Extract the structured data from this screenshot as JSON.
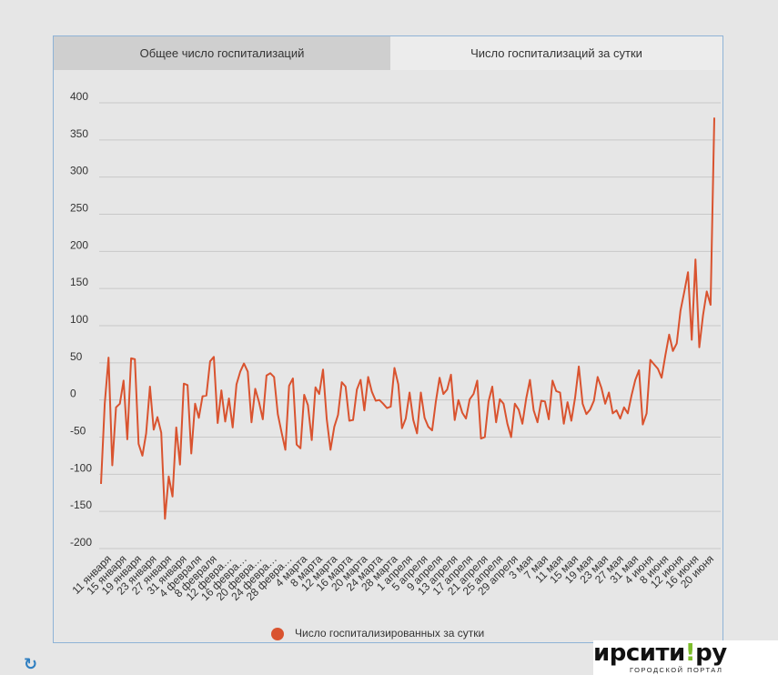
{
  "tabs": [
    {
      "label": "Общее число госпитализаций",
      "active": false
    },
    {
      "label": "Число госпитализаций за сутки",
      "active": true
    }
  ],
  "colors": {
    "series": "#d9532f",
    "grid": "#c8c8c8",
    "frame_border": "#8fb3d6"
  },
  "legend": {
    "label": "Число госпитализированных за сутки"
  },
  "icons": {
    "refresh": "refresh-icon"
  },
  "logo": {
    "main": "ирсити",
    "accent": "!",
    "suffix": "ру",
    "tagline": "ГОРОДСКОЙ ПОРТАЛ"
  },
  "chart_data": {
    "type": "line",
    "ylim": [
      -200,
      400
    ],
    "yticks": [
      400,
      350,
      300,
      250,
      200,
      150,
      100,
      50,
      0,
      -50,
      -100,
      -150,
      -200
    ],
    "grid": true,
    "legend_position": "bottom",
    "xtick_labels": [
      "11 января",
      "15 января",
      "19 января",
      "23 января",
      "27 января",
      "31 января",
      "4 февраля",
      "8 февраля",
      "12 февра…",
      "16 февра…",
      "20 февра…",
      "24 февра…",
      "28 февра…",
      "4 марта",
      "8 марта",
      "12 марта",
      "16 марта",
      "20 марта",
      "24 марта",
      "28 марта",
      "1 апреля",
      "5 апреля",
      "9 апреля",
      "13 апреля",
      "17 апреля",
      "21 апреля",
      "25 апреля",
      "29 апреля",
      "3 мая",
      "7 мая",
      "11 мая",
      "15 мая",
      "19 мая",
      "23 мая",
      "27 мая",
      "31 мая",
      "4 июня",
      "8 июня",
      "12 июня",
      "16 июня",
      "20 июня"
    ],
    "series": [
      {
        "name": "Число госпитализированных за сутки",
        "values": [
          -113,
          -5,
          57,
          -88,
          -10,
          -5,
          26,
          -53,
          56,
          55,
          -59,
          -75,
          -45,
          18,
          -40,
          -23,
          -44,
          -160,
          -103,
          -130,
          -37,
          -87,
          22,
          20,
          -72,
          -5,
          -24,
          5,
          6,
          52,
          58,
          -31,
          13,
          -29,
          2,
          -37,
          21,
          38,
          49,
          38,
          -30,
          15,
          -3,
          -26,
          33,
          36,
          31,
          -19,
          -44,
          -67,
          19,
          29,
          -60,
          -65,
          7,
          -7,
          -54,
          17,
          8,
          41,
          -26,
          -67,
          -36,
          -20,
          24,
          18,
          -28,
          -27,
          14,
          27,
          -14,
          31,
          11,
          -1,
          0,
          -5,
          -11,
          -9,
          43,
          21,
          -38,
          -25,
          10,
          -27,
          -45,
          10,
          -24,
          -36,
          -41,
          -2,
          30,
          8,
          14,
          34,
          -27,
          0,
          -17,
          -25,
          1,
          8,
          26,
          -52,
          -50,
          -2,
          18,
          -30,
          1,
          -5,
          -32,
          -50,
          -5,
          -13,
          -32,
          2,
          27,
          -14,
          -30,
          -1,
          -2,
          -26,
          26,
          12,
          10,
          -32,
          -3,
          -28,
          3,
          45,
          -5,
          -19,
          -13,
          -1,
          31,
          16,
          -5,
          10,
          -18,
          -14,
          -25,
          -10,
          -18,
          6,
          27,
          40,
          -33,
          -18,
          54,
          48,
          42,
          30,
          60,
          88,
          66,
          76,
          120,
          145,
          172,
          81,
          189,
          71,
          114,
          146,
          128,
          380
        ]
      }
    ]
  }
}
